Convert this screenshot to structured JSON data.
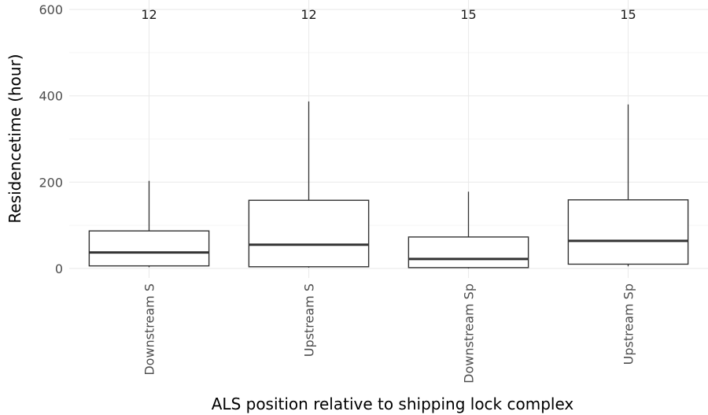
{
  "chart_data": {
    "type": "box",
    "xlabel": "ALS position relative to shipping lock complex",
    "ylabel": "Residencetime (hour)",
    "ylim": [
      -22,
      622
    ],
    "yticks": [
      0,
      200,
      400,
      600
    ],
    "grid": true,
    "legend": "none",
    "categories": [
      "Downstream S",
      "Upstream S",
      "Downstream Sp",
      "Upstream Sp"
    ],
    "counts": [
      "12",
      "12",
      "15",
      "15"
    ],
    "boxes": [
      {
        "category": "Downstream S",
        "whisker_low": 3,
        "q1": 6,
        "median": 37,
        "q3": 87,
        "whisker_high": 203
      },
      {
        "category": "Upstream S",
        "whisker_low": 2,
        "q1": 4,
        "median": 55,
        "q3": 158,
        "whisker_high": 387
      },
      {
        "category": "Downstream Sp",
        "whisker_low": 0,
        "q1": 2,
        "median": 22,
        "q3": 73,
        "whisker_high": 178
      },
      {
        "category": "Upstream Sp",
        "whisker_low": 5,
        "q1": 10,
        "median": 64,
        "q3": 159,
        "whisker_high": 380
      }
    ],
    "colors": {
      "box_stroke": "#333333",
      "grid": "#ebebeb",
      "box_fill": "#ffffff"
    }
  }
}
